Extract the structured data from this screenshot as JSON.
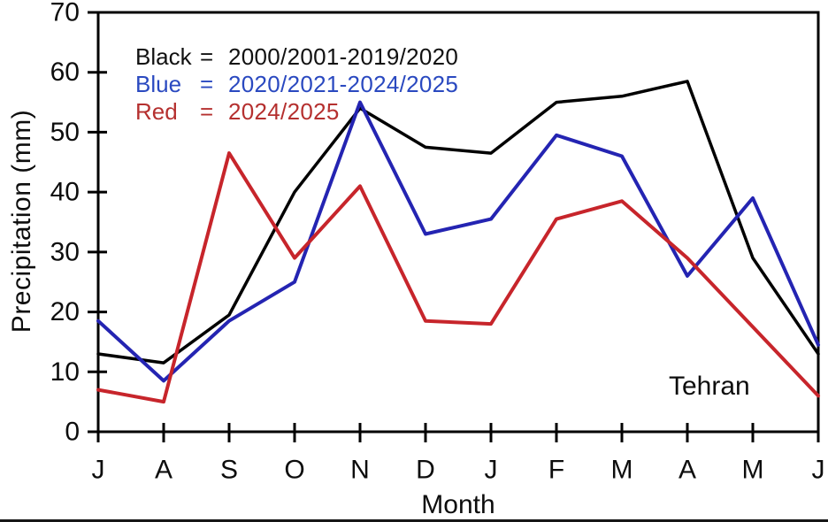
{
  "chart_data": {
    "type": "line",
    "title": "",
    "xlabel": "Month",
    "ylabel": "Precipitation (mm)",
    "x_categories": [
      "J",
      "A",
      "S",
      "O",
      "N",
      "D",
      "J",
      "F",
      "M",
      "A",
      "M",
      "J"
    ],
    "yticks": [
      0,
      10,
      20,
      30,
      40,
      50,
      60,
      70
    ],
    "ylim": [
      0,
      70
    ],
    "grid": false,
    "legend_position": "top-left-inside",
    "annotation": "Tehran",
    "series": [
      {
        "name": "black",
        "legend_label": "Black",
        "legend_eq": "=",
        "legend_value": "2000/2001-2019/2020",
        "color": "#000000",
        "text_color": "#111111",
        "values": [
          13,
          11.5,
          19.5,
          40,
          54,
          47.5,
          46.5,
          55,
          56,
          58.5,
          29,
          13
        ]
      },
      {
        "name": "blue",
        "legend_label": "Blue",
        "legend_eq": "=",
        "legend_value": "2020/2021-2024/2025",
        "color": "#2424b2",
        "text_color": "#2a49c0",
        "values": [
          18.5,
          8.5,
          18.5,
          25,
          55,
          33,
          35.5,
          49.5,
          46,
          26,
          39,
          14.5
        ]
      },
      {
        "name": "red",
        "legend_label": "Red",
        "legend_eq": "=",
        "legend_value": "2024/2025",
        "color": "#c7252b",
        "text_color": "#b5302f",
        "values": [
          7,
          5,
          46.5,
          29,
          41,
          18.5,
          18,
          35.5,
          38.5,
          29,
          17.5,
          6
        ]
      }
    ]
  }
}
